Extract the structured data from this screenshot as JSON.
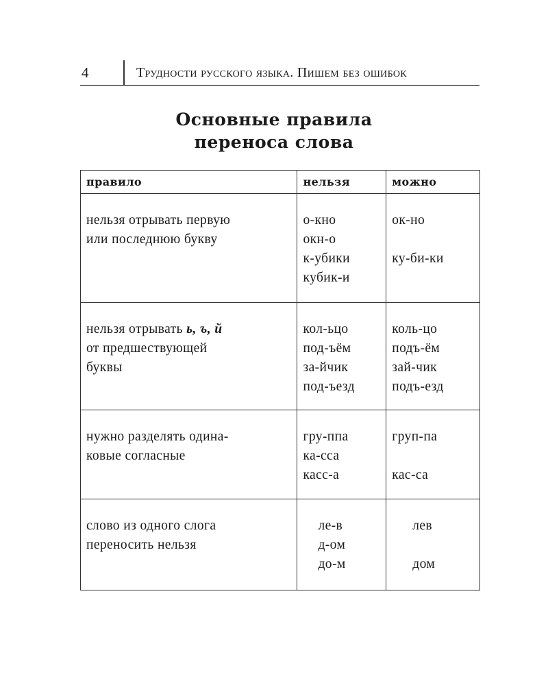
{
  "header": {
    "page_number": "4",
    "running_title": "Трудности русского языка. Пишем без ошибок"
  },
  "title": {
    "line1": "Основные правила",
    "line2": "переноса слова"
  },
  "table": {
    "columns": [
      "правило",
      "нельзя",
      "можно"
    ],
    "rows": [
      {
        "rule": [
          "нельзя отрывать первую",
          "или последнюю букву"
        ],
        "wrong": [
          "о-кно",
          "окн-о",
          "к-убики",
          "кубик-и"
        ],
        "right": [
          "ок-но",
          "",
          "ку-би-ки"
        ]
      },
      {
        "rule_prefix": "нельзя отрывать ",
        "rule_bold": "ь, ъ, й",
        "rule": [
          "от предшествующей",
          "буквы"
        ],
        "wrong": [
          "кол-ьцо",
          "под-ъём",
          "за-йчик",
          "под-ъезд"
        ],
        "right": [
          "коль-цо",
          "подъ-ём",
          "зай-чик",
          "подъ-езд"
        ]
      },
      {
        "rule": [
          "нужно разделять одина-",
          "ковые согласные"
        ],
        "wrong": [
          "гру-ппа",
          "ка-сса",
          "касс-а"
        ],
        "right": [
          "груп-па",
          "",
          "кас-са"
        ]
      },
      {
        "rule": [
          "слово из одного слога",
          "переносить нельзя"
        ],
        "wrong": [
          "ле-в",
          "д-ом",
          "до-м"
        ],
        "right": [
          "лев",
          "",
          "дом"
        ]
      }
    ]
  }
}
